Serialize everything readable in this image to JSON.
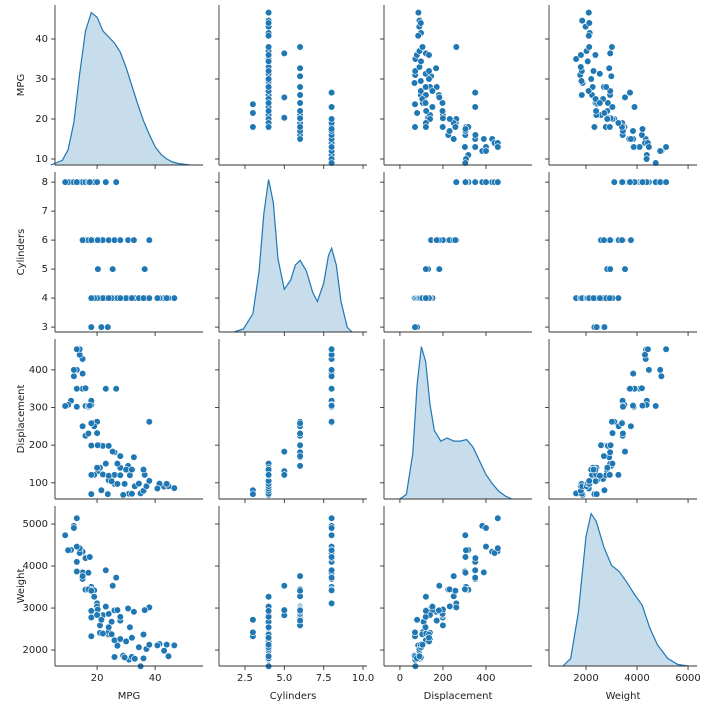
{
  "chart_data": {
    "type": "pairplot",
    "color": "#1f77b4",
    "variables": [
      "MPG",
      "Cylinders",
      "Displacement",
      "Weight"
    ],
    "axes": [
      {
        "xlim": [
          5.5,
          56.5
        ],
        "ylim": [
          8.5,
          48.5
        ],
        "xticks": [
          20,
          40
        ],
        "yticks": [
          10,
          20,
          30,
          40
        ]
      },
      {
        "xlim": [
          0.85,
          10.25
        ],
        "ylim": [
          2.83,
          8.35
        ],
        "xticks": [
          2.5,
          {
            "value": 5,
            "label": "5.0"
          },
          7.5,
          {
            "value": 10,
            "label": "10.0"
          }
        ],
        "yticks": [
          3,
          4,
          5,
          6,
          7,
          8
        ]
      },
      {
        "xlim": [
          -74,
          614
        ],
        "ylim": [
          57,
          482
        ],
        "xticks": [
          0,
          200,
          400
        ],
        "yticks": [
          100,
          200,
          300,
          400
        ]
      },
      {
        "xlim": [
          550,
          6350
        ],
        "ylim": [
          1620,
          5430
        ],
        "xticks": [
          2000,
          4000,
          6000
        ],
        "yticks": [
          2000,
          3000,
          4000,
          5000
        ]
      }
    ],
    "rows": [
      [
        18,
        8,
        307,
        3504
      ],
      [
        15,
        8,
        350,
        3693
      ],
      [
        18,
        8,
        318,
        3436
      ],
      [
        16,
        8,
        304,
        3433
      ],
      [
        17,
        8,
        302,
        3449
      ],
      [
        15,
        8,
        429,
        4341
      ],
      [
        14,
        8,
        454,
        4354
      ],
      [
        14,
        8,
        440,
        4312
      ],
      [
        14,
        8,
        455,
        4425
      ],
      [
        15,
        8,
        390,
        3850
      ],
      [
        12,
        8,
        383,
        4955
      ],
      [
        13,
        8,
        400,
        4464
      ],
      [
        11,
        8,
        318,
        4382
      ],
      [
        10,
        8,
        307,
        4376
      ],
      [
        9,
        8,
        304,
        4732
      ],
      [
        13,
        8,
        350,
        4100
      ],
      [
        12,
        8,
        400,
        4906
      ],
      [
        13,
        8,
        302,
        3870
      ],
      [
        16,
        8,
        351,
        4190
      ],
      [
        19,
        8,
        260,
        3420
      ],
      [
        17,
        8,
        305,
        3840
      ],
      [
        23,
        8,
        350,
        3900
      ],
      [
        26.6,
        8,
        350,
        3725
      ],
      [
        17.5,
        8,
        305,
        4215
      ],
      [
        13,
        8,
        455,
        5140
      ],
      [
        20,
        8,
        262,
        3110
      ],
      [
        18,
        6,
        199,
        2774
      ],
      [
        21,
        6,
        200,
        2587
      ],
      [
        22,
        6,
        198,
        2833
      ],
      [
        16,
        6,
        225,
        3439
      ],
      [
        19,
        6,
        250,
        3282
      ],
      [
        20,
        6,
        232,
        3039
      ],
      [
        24,
        6,
        198,
        2860
      ],
      [
        17,
        6,
        231,
        3445
      ],
      [
        38,
        6,
        262,
        3015
      ],
      [
        30.7,
        6,
        145,
        2990
      ],
      [
        32.7,
        6,
        168,
        2910
      ],
      [
        15,
        6,
        250,
        3760
      ],
      [
        18,
        6,
        258,
        3410
      ],
      [
        20.2,
        6,
        200,
        2965
      ],
      [
        26,
        6,
        181,
        2945
      ],
      [
        28,
        6,
        171,
        2700
      ],
      [
        20.3,
        5,
        131,
        2830
      ],
      [
        25.4,
        5,
        183,
        3530
      ],
      [
        36.4,
        5,
        121,
        2950
      ],
      [
        18,
        3,
        70,
        2330
      ],
      [
        21.5,
        3,
        80,
        2720
      ],
      [
        23.7,
        3,
        70,
        2420
      ],
      [
        24,
        4,
        113,
        2372
      ],
      [
        27,
        4,
        97,
        2130
      ],
      [
        26,
        4,
        97,
        1835
      ],
      [
        25,
        4,
        110,
        2672
      ],
      [
        24,
        4,
        107,
        2430
      ],
      [
        26,
        4,
        121,
        2234
      ],
      [
        21,
        4,
        140,
        2408
      ],
      [
        28,
        4,
        140,
        2264
      ],
      [
        25,
        4,
        104,
        2375
      ],
      [
        31,
        4,
        71,
        1773
      ],
      [
        35,
        4,
        72,
        1613
      ],
      [
        27,
        4,
        97,
        2100
      ],
      [
        29,
        4,
        68,
        1867
      ],
      [
        32,
        4,
        71,
        1836
      ],
      [
        33,
        4,
        91,
        1795
      ],
      [
        29.5,
        4,
        97,
        1825
      ],
      [
        36,
        4,
        79,
        1800
      ],
      [
        43.1,
        4,
        90,
        1985
      ],
      [
        41.5,
        4,
        98,
        2144
      ],
      [
        46.6,
        4,
        86,
        2110
      ],
      [
        44.6,
        4,
        91,
        1850
      ],
      [
        40.8,
        4,
        85,
        2110
      ],
      [
        37,
        4,
        91,
        2025
      ],
      [
        34.4,
        4,
        98,
        2065
      ],
      [
        31.3,
        4,
        120,
        2542
      ],
      [
        30,
        4,
        135,
        2205
      ],
      [
        27,
        4,
        151,
        2950
      ],
      [
        23,
        4,
        151,
        3035
      ],
      [
        22,
        4,
        122,
        2395
      ],
      [
        20,
        4,
        140,
        2835
      ],
      [
        19,
        4,
        121,
        3270
      ],
      [
        44,
        4,
        97,
        2130
      ],
      [
        36,
        4,
        135,
        2370
      ],
      [
        38,
        4,
        105,
        2125
      ],
      [
        32,
        4,
        135,
        2295
      ],
      [
        28,
        4,
        120,
        2790
      ],
      [
        24,
        4,
        119,
        2545
      ],
      [
        18,
        4,
        121,
        2933
      ]
    ],
    "kde_ylim": [
      0,
      105
    ],
    "kde": [
      {
        "x": [
          4,
          8,
          10,
          12,
          14,
          16,
          18,
          20,
          22,
          24,
          26,
          28,
          30,
          32,
          34,
          36,
          38,
          40,
          42,
          44,
          46,
          48,
          50,
          52
        ],
        "density": [
          0,
          3,
          10,
          28,
          60,
          88,
          100,
          97,
          88,
          84,
          80,
          74,
          64,
          52,
          40,
          29,
          20,
          12,
          7,
          4,
          2,
          1,
          0.5,
          0
        ]
      },
      {
        "x": [
          1.8,
          2.4,
          3,
          3.4,
          3.7,
          4,
          4.3,
          4.6,
          5,
          5.4,
          5.7,
          6,
          6.4,
          6.8,
          7.1,
          7.5,
          7.8,
          8,
          8.3,
          8.6,
          9,
          9.3
        ],
        "density": [
          0,
          2,
          12,
          40,
          78,
          100,
          85,
          48,
          28,
          34,
          44,
          47,
          40,
          26,
          20,
          32,
          50,
          55,
          44,
          20,
          3,
          0
        ]
      },
      {
        "x": [
          0,
          30,
          60,
          80,
          100,
          120,
          140,
          160,
          190,
          220,
          250,
          280,
          310,
          340,
          370,
          400,
          430,
          460,
          490,
          520
        ],
        "density": [
          0,
          3,
          30,
          75,
          100,
          90,
          62,
          45,
          38,
          40,
          38,
          38,
          39,
          34,
          25,
          16,
          10,
          5,
          2,
          0
        ]
      },
      {
        "x": [
          1100,
          1400,
          1700,
          2000,
          2200,
          2400,
          2700,
          3000,
          3300,
          3600,
          3900,
          4200,
          4500,
          4800,
          5200,
          5600,
          6000
        ],
        "density": [
          0,
          5,
          35,
          85,
          100,
          95,
          78,
          66,
          62,
          55,
          47,
          40,
          25,
          14,
          5,
          1,
          0
        ]
      }
    ]
  }
}
